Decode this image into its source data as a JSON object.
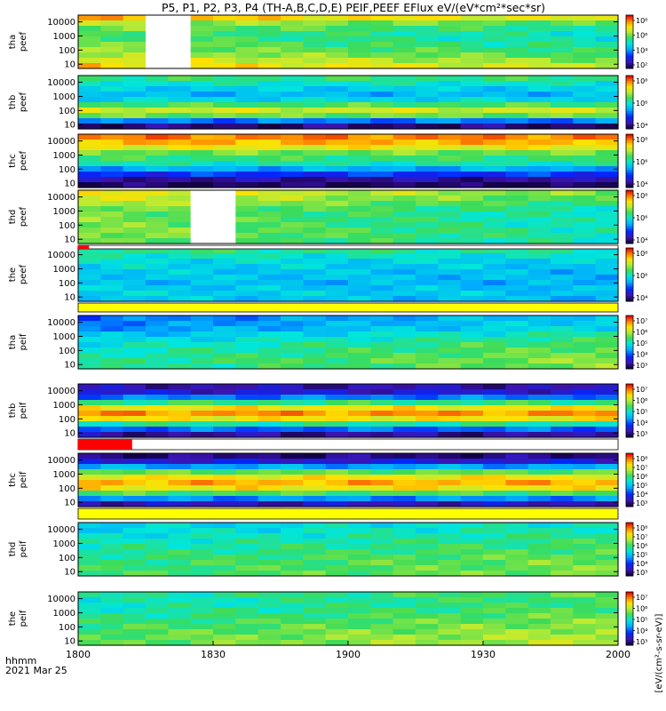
{
  "chart_data": {
    "type": "heatmap",
    "title": "P5, P1, P2, P3, P4 (TH-A,B,C,D,E) PEIF,PEEF EFlux eV/(eV*cm²*sec*sr)",
    "x_axis": {
      "ticks": [
        "1800",
        "1830",
        "1900",
        "1930",
        "2000"
      ],
      "range": [
        "18:00",
        "20:00"
      ],
      "label_line1": "hhmm",
      "label_line2": "2021 Mar 25"
    },
    "y_ticks": [
      "10000",
      "1000",
      "100",
      "10"
    ],
    "y_scale": "log",
    "y_range": [
      5,
      30000
    ],
    "colorbar_label": "[eV/(cm²-s-sr-eV)]",
    "colorbar_scale": "log",
    "panels": [
      {
        "label1": "tha",
        "label2": "peef",
        "cb_ticks": [
          "10⁸",
          "10⁶",
          "10⁴",
          "10²"
        ],
        "profile": [
          0.85,
          0.7,
          0.64,
          0.6,
          0.6,
          0.63,
          0.66,
          0.7,
          0.76,
          0.82
        ],
        "trend": -0.12,
        "gaps": [
          [
            0.125,
            0.19
          ]
        ]
      },
      {
        "label1": "thb",
        "label2": "peef",
        "cb_ticks": [
          "10⁸",
          "10⁶",
          "10⁴"
        ],
        "profile": [
          0.55,
          0.48,
          0.42,
          0.38,
          0.44,
          0.58,
          0.72,
          0.62,
          0.3,
          0.05
        ],
        "trend": 0.0,
        "gaps": []
      },
      {
        "label1": "thc",
        "label2": "peef",
        "cb_ticks": [
          "10⁸",
          "10⁶",
          "10⁴"
        ],
        "profile": [
          0.9,
          0.85,
          0.76,
          0.62,
          0.56,
          0.5,
          0.36,
          0.22,
          0.08,
          0.02
        ],
        "trend": 0.0,
        "gaps": []
      },
      {
        "label1": "thd",
        "label2": "peef",
        "cb_ticks": [
          "10⁸",
          "10⁶",
          "10⁴"
        ],
        "profile": [
          0.78,
          0.74,
          0.7,
          0.66,
          0.64,
          0.64,
          0.64,
          0.66,
          0.66,
          0.64
        ],
        "trend": -0.16,
        "gaps": [
          [
            0.2,
            0.3
          ]
        ]
      },
      {
        "label1": "the",
        "label2": "peef",
        "cb_ticks": [
          "10⁸",
          "10⁶",
          "10⁴"
        ],
        "profile": [
          0.55,
          0.5,
          0.46,
          0.44,
          0.42,
          0.42,
          0.4,
          0.42,
          0.44,
          0.42
        ],
        "trend": -0.04,
        "gaps": []
      },
      {
        "label1": "tha",
        "label2": "peif",
        "cb_ticks": [
          "10⁷",
          "10⁶",
          "10⁵",
          "10⁴",
          "10³"
        ],
        "profile": [
          0.28,
          0.3,
          0.32,
          0.38,
          0.42,
          0.46,
          0.48,
          0.5,
          0.52,
          0.5
        ],
        "trend": 0.14,
        "gaps": []
      },
      {
        "label1": "thb",
        "label2": "peif",
        "cb_ticks": [
          "10⁷",
          "10⁶",
          "10⁵",
          "10⁴",
          "10³"
        ],
        "profile": [
          0.1,
          0.14,
          0.3,
          0.55,
          0.78,
          0.88,
          0.78,
          0.52,
          0.28,
          0.08
        ],
        "trend": 0.0,
        "gaps": []
      },
      {
        "label1": "thc",
        "label2": "peif",
        "cb_ticks": [
          "10⁸",
          "10⁷",
          "10⁶",
          "10⁵",
          "10⁴",
          "10³"
        ],
        "profile": [
          0.05,
          0.15,
          0.35,
          0.6,
          0.78,
          0.85,
          0.78,
          0.58,
          0.32,
          0.12
        ],
        "trend": 0.0,
        "gaps": []
      },
      {
        "label1": "thd",
        "label2": "peif",
        "cb_ticks": [
          "10⁸",
          "10⁷",
          "10⁶",
          "10⁵",
          "10⁴",
          "10³"
        ],
        "profile": [
          0.42,
          0.44,
          0.46,
          0.48,
          0.5,
          0.52,
          0.54,
          0.55,
          0.55,
          0.56
        ],
        "trend": 0.08,
        "gaps": []
      },
      {
        "label1": "the",
        "label2": "peif",
        "cb_ticks": [
          "10⁷",
          "10⁶",
          "10⁵",
          "10⁴",
          "10³"
        ],
        "profile": [
          0.5,
          0.48,
          0.48,
          0.5,
          0.52,
          0.54,
          0.56,
          0.58,
          0.6,
          0.6
        ],
        "trend": 0.1,
        "gaps": []
      }
    ],
    "separator_bars": [
      {
        "after_panel": 4,
        "mode": "red",
        "from": 0.0,
        "to": 0.02
      },
      {
        "after_panel": 5,
        "mode": "yellow"
      },
      {
        "after_panel": 7,
        "mode": "red",
        "from": 0.0,
        "to": 0.1
      },
      {
        "after_panel": 8,
        "mode": "yellow"
      }
    ]
  }
}
